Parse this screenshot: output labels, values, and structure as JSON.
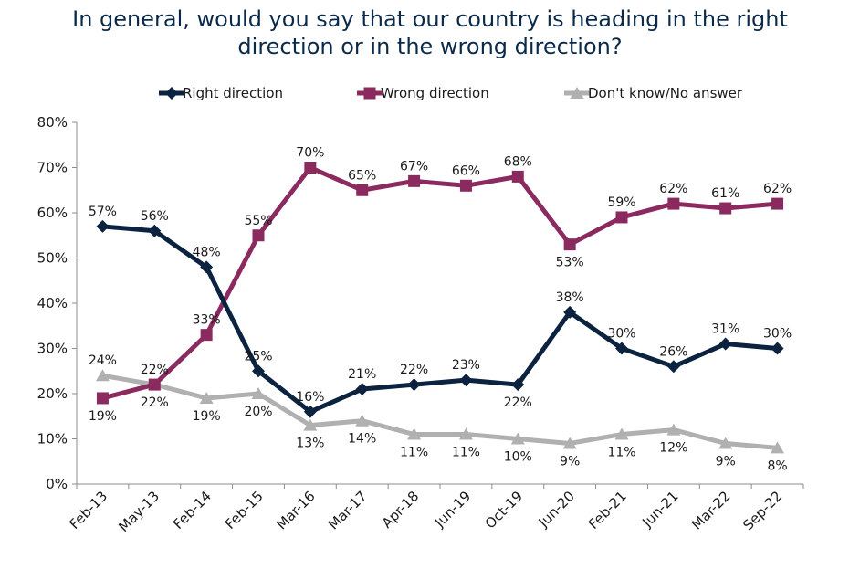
{
  "chart_data": {
    "type": "line",
    "title_lines": [
      "In general, would you say that our country is heading in the right",
      "direction or in the wrong direction?"
    ],
    "categories": [
      "Feb-13",
      "May-13",
      "Feb-14",
      "Feb-15",
      "Mar-16",
      "Mar-17",
      "Apr-18",
      "Jun-19",
      "Oct-19",
      "Jun-20",
      "Feb-21",
      "Jun-21",
      "Mar-22",
      "Sep-22"
    ],
    "ylim": [
      0,
      80
    ],
    "yticks": [
      "0%",
      "10%",
      "20%",
      "30%",
      "40%",
      "50%",
      "60%",
      "70%",
      "80%"
    ],
    "legend_position": "top",
    "grid": false,
    "series": [
      {
        "name": "Right direction",
        "color": "#0c2340",
        "marker": "diamond",
        "values": [
          57,
          56,
          48,
          25,
          16,
          21,
          22,
          23,
          22,
          38,
          30,
          26,
          31,
          30
        ],
        "labels": [
          "57%",
          "56%",
          "48%",
          "25%",
          "16%",
          "21%",
          "22%",
          "23%",
          "22%",
          "38%",
          "30%",
          "26%",
          "31%",
          "30%"
        ]
      },
      {
        "name": "Wrong direction",
        "color": "#8b2a5f",
        "marker": "square",
        "values": [
          19,
          22,
          33,
          55,
          70,
          65,
          67,
          66,
          68,
          53,
          59,
          62,
          61,
          62
        ],
        "labels": [
          "19%",
          "22%",
          "33%",
          "55%",
          "70%",
          "65%",
          "67%",
          "66%",
          "68%",
          "53%",
          "59%",
          "62%",
          "61%",
          "62%"
        ]
      },
      {
        "name": "Don't know/No answer",
        "color": "#b0b0b0",
        "marker": "triangle",
        "values": [
          24,
          22,
          19,
          20,
          13,
          14,
          11,
          11,
          10,
          9,
          11,
          12,
          9,
          8
        ],
        "labels": [
          "24%",
          "22%",
          "19%",
          "20%",
          "13%",
          "14%",
          "11%",
          "11%",
          "10%",
          "9%",
          "11%",
          "12%",
          "9%",
          "8%"
        ]
      }
    ]
  }
}
